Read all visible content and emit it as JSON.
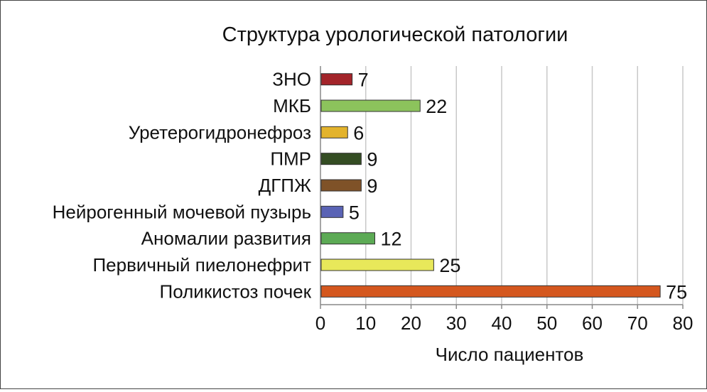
{
  "chart_data": {
    "type": "bar",
    "orientation": "horizontal",
    "title": "Структура урологической патологии",
    "xlabel": "Число пациентов",
    "ylabel": "",
    "xlim": [
      0,
      80
    ],
    "xticks": [
      0,
      10,
      20,
      30,
      40,
      50,
      60,
      70,
      80
    ],
    "grid": "vertical",
    "legend": "none",
    "categories": [
      "ЗНО",
      "МКБ",
      "Уретерогидронефроз",
      "ПМР",
      "ДГПЖ",
      "Нейрогенный мочевой пузырь",
      "Аномалии развития",
      "Первичный пиелонефрит",
      "Поликистоз почек"
    ],
    "values": [
      7,
      22,
      6,
      9,
      9,
      5,
      12,
      25,
      75
    ],
    "colors": [
      "#a3242a",
      "#8cc35c",
      "#e3b32c",
      "#344d23",
      "#7f5228",
      "#5a63b5",
      "#5caa55",
      "#e8e85a",
      "#d4571e"
    ],
    "data_labels": [
      "7",
      "22",
      "6",
      "9",
      "9",
      "5",
      "12",
      "25",
      "75"
    ]
  }
}
